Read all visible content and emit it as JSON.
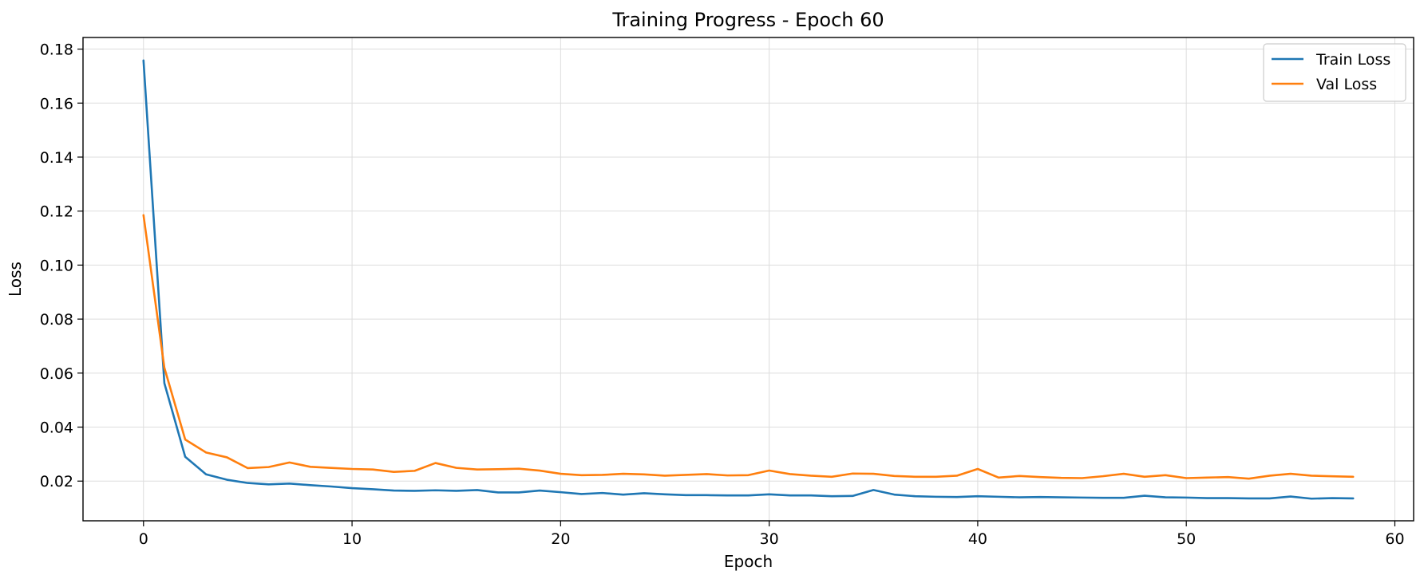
{
  "chart_data": {
    "type": "line",
    "title": "Training Progress - Epoch 60",
    "xlabel": "Epoch",
    "ylabel": "Loss",
    "xlim": [
      -2.9,
      60.9
    ],
    "ylim": [
      0.0053,
      0.1843
    ],
    "xticks": [
      0,
      10,
      20,
      30,
      40,
      50,
      60
    ],
    "yticks": [
      0.02,
      0.04,
      0.06,
      0.08,
      0.1,
      0.12,
      0.14,
      0.16,
      0.18
    ],
    "xtick_labels": [
      "0",
      "10",
      "20",
      "30",
      "40",
      "50",
      "60"
    ],
    "ytick_labels": [
      "0.02",
      "0.04",
      "0.06",
      "0.08",
      "0.10",
      "0.12",
      "0.14",
      "0.16",
      "0.18"
    ],
    "grid": true,
    "legend_position": "top-right",
    "series": [
      {
        "name": "Train Loss",
        "color": "#1f77b4",
        "x": [
          0,
          1,
          2,
          3,
          4,
          5,
          6,
          7,
          8,
          9,
          10,
          11,
          12,
          13,
          14,
          15,
          16,
          17,
          18,
          19,
          20,
          21,
          22,
          23,
          24,
          25,
          26,
          27,
          28,
          29,
          30,
          31,
          32,
          33,
          34,
          35,
          36,
          37,
          38,
          39,
          40,
          41,
          42,
          43,
          44,
          45,
          46,
          47,
          48,
          49,
          50,
          51,
          52,
          53,
          54,
          55,
          56,
          57,
          58
        ],
        "values": [
          0.1758,
          0.0563,
          0.029,
          0.0225,
          0.0205,
          0.0193,
          0.0188,
          0.0191,
          0.0185,
          0.018,
          0.0174,
          0.017,
          0.0165,
          0.0164,
          0.0166,
          0.0164,
          0.0167,
          0.0158,
          0.0158,
          0.0165,
          0.0159,
          0.0152,
          0.0156,
          0.015,
          0.0155,
          0.0151,
          0.0148,
          0.0148,
          0.0147,
          0.0147,
          0.0151,
          0.0147,
          0.0147,
          0.0144,
          0.0145,
          0.0167,
          0.015,
          0.0144,
          0.0142,
          0.0141,
          0.0144,
          0.0142,
          0.014,
          0.0141,
          0.014,
          0.0139,
          0.0138,
          0.0138,
          0.0146,
          0.014,
          0.0139,
          0.0137,
          0.0137,
          0.0136,
          0.0136,
          0.0143,
          0.0135,
          0.0137,
          0.0136
        ]
      },
      {
        "name": "Val Loss",
        "color": "#ff7f0e",
        "x": [
          0,
          1,
          2,
          3,
          4,
          5,
          6,
          7,
          8,
          9,
          10,
          11,
          12,
          13,
          14,
          15,
          16,
          17,
          18,
          19,
          20,
          21,
          22,
          23,
          24,
          25,
          26,
          27,
          28,
          29,
          30,
          31,
          32,
          33,
          34,
          35,
          36,
          37,
          38,
          39,
          40,
          41,
          42,
          43,
          44,
          45,
          46,
          47,
          48,
          49,
          50,
          51,
          52,
          53,
          54,
          55,
          56,
          57,
          58
        ],
        "values": [
          0.1185,
          0.062,
          0.0354,
          0.0306,
          0.0288,
          0.0248,
          0.0252,
          0.0269,
          0.0253,
          0.0249,
          0.0245,
          0.0243,
          0.0234,
          0.0238,
          0.0267,
          0.0249,
          0.0243,
          0.0244,
          0.0246,
          0.0239,
          0.0227,
          0.0222,
          0.0223,
          0.0227,
          0.0225,
          0.022,
          0.0223,
          0.0226,
          0.0221,
          0.0222,
          0.0239,
          0.0226,
          0.022,
          0.0216,
          0.0228,
          0.0227,
          0.0219,
          0.0216,
          0.0216,
          0.022,
          0.0245,
          0.0213,
          0.0219,
          0.0215,
          0.0212,
          0.0211,
          0.0218,
          0.0227,
          0.0216,
          0.0222,
          0.0211,
          0.0213,
          0.0215,
          0.0209,
          0.022,
          0.0227,
          0.022,
          0.0218,
          0.0216
        ]
      }
    ]
  }
}
